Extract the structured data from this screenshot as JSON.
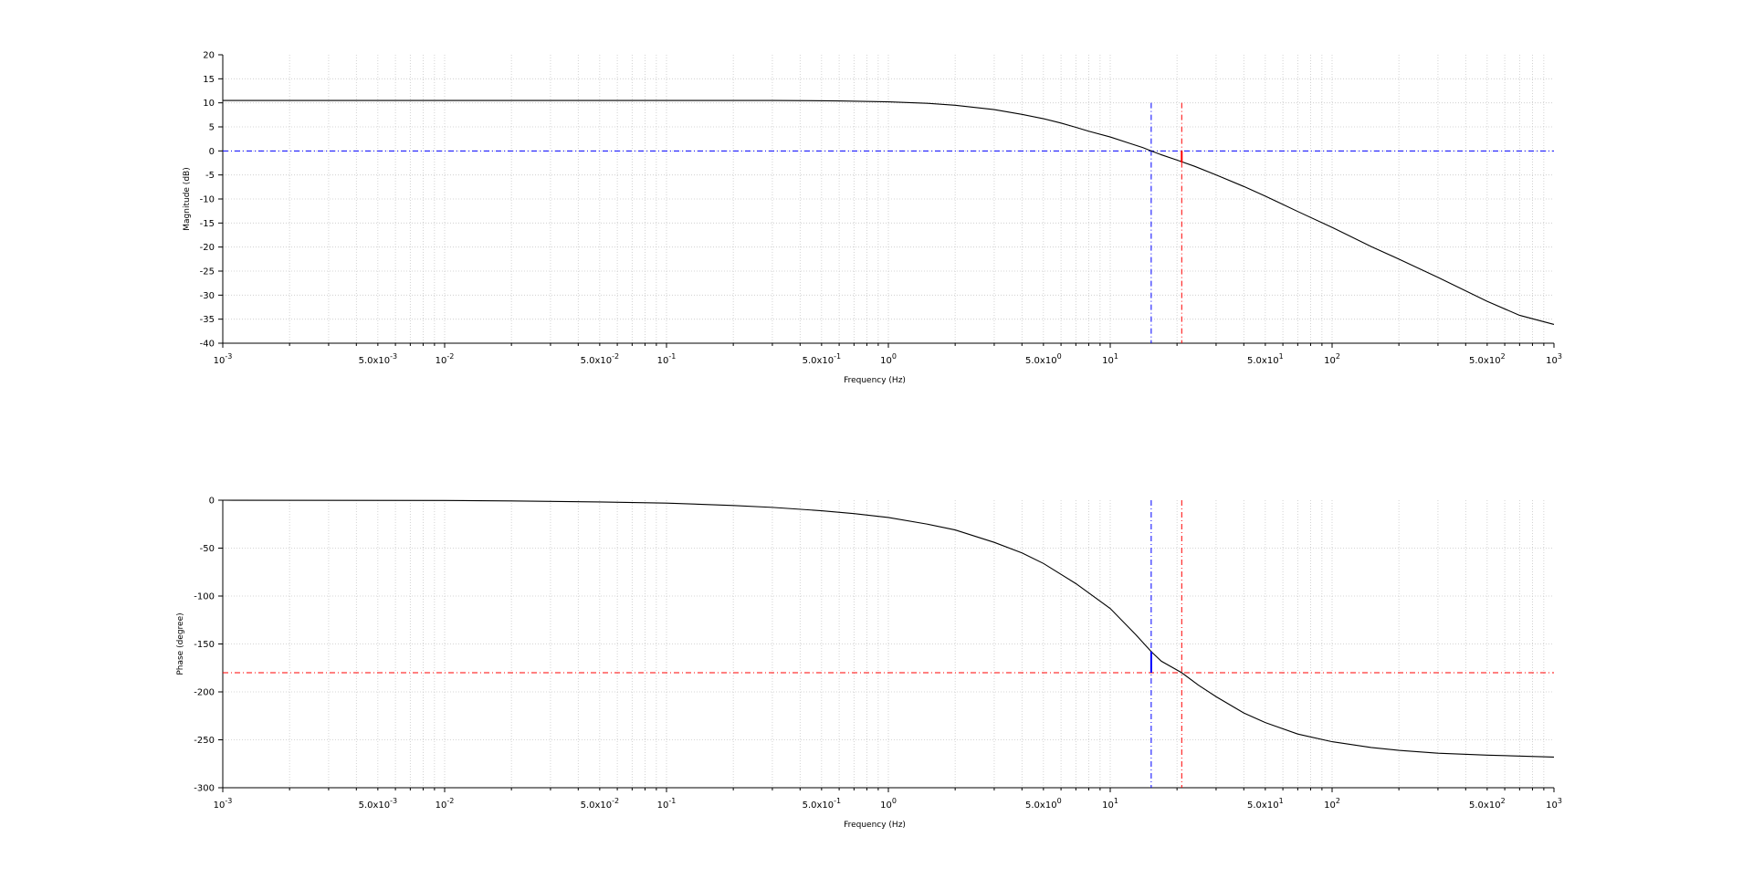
{
  "chart_data": [
    {
      "type": "line",
      "id": "magnitude",
      "title": "",
      "xlabel": "Frequency (Hz)",
      "ylabel": "Magnitude (dB)",
      "xscale": "log",
      "xlim": [
        0.001,
        1000
      ],
      "ylim": [
        -40,
        20
      ],
      "yticks": [
        20,
        15,
        10,
        5,
        0,
        -5,
        -10,
        -15,
        -20,
        -25,
        -30,
        -35,
        -40
      ],
      "xticks": [
        {
          "v": 0.001,
          "base": "10",
          "exp": "-3"
        },
        {
          "v": 0.005,
          "base": "5.0x10",
          "exp": "-3"
        },
        {
          "v": 0.01,
          "base": "10",
          "exp": "-2"
        },
        {
          "v": 0.05,
          "base": "5.0x10",
          "exp": "-2"
        },
        {
          "v": 0.1,
          "base": "10",
          "exp": "-1"
        },
        {
          "v": 0.5,
          "base": "5.0x10",
          "exp": "-1"
        },
        {
          "v": 1,
          "base": "10",
          "exp": "0"
        },
        {
          "v": 5,
          "base": "5.0x10",
          "exp": "0"
        },
        {
          "v": 10,
          "base": "10",
          "exp": "1"
        },
        {
          "v": 50,
          "base": "5.0x10",
          "exp": "1"
        },
        {
          "v": 100,
          "base": "10",
          "exp": "2"
        },
        {
          "v": 500,
          "base": "5.0x10",
          "exp": "2"
        },
        {
          "v": 1000,
          "base": "10",
          "exp": "3"
        }
      ],
      "grid": true,
      "series": [
        {
          "color": "#000000",
          "points": [
            [
              0.001,
              10.5
            ],
            [
              0.01,
              10.5
            ],
            [
              0.1,
              10.5
            ],
            [
              0.3,
              10.5
            ],
            [
              0.6,
              10.4
            ],
            [
              1,
              10.2
            ],
            [
              1.5,
              9.9
            ],
            [
              2,
              9.5
            ],
            [
              3,
              8.6
            ],
            [
              4,
              7.6
            ],
            [
              5,
              6.7
            ],
            [
              6,
              5.8
            ],
            [
              7,
              4.9
            ],
            [
              8,
              4.1
            ],
            [
              10,
              2.9
            ],
            [
              12,
              1.7
            ],
            [
              14,
              0.7
            ],
            [
              15.3,
              0
            ],
            [
              17,
              -0.8
            ],
            [
              20,
              -1.9
            ],
            [
              24,
              -3.2
            ],
            [
              30,
              -5.0
            ],
            [
              40,
              -7.4
            ],
            [
              50,
              -9.4
            ],
            [
              70,
              -12.6
            ],
            [
              100,
              -15.9
            ],
            [
              150,
              -19.9
            ],
            [
              200,
              -22.5
            ],
            [
              300,
              -26.3
            ],
            [
              500,
              -31.3
            ],
            [
              700,
              -34.2
            ],
            [
              1000,
              -36.1
            ]
          ]
        }
      ],
      "reference_lines": [
        {
          "orientation": "horizontal",
          "value": 0,
          "color": "#0000ff",
          "style": "dash-dot"
        },
        {
          "orientation": "vertical",
          "value": 15.3,
          "color": "#0000ff",
          "style": "dash-dot",
          "range": [
            -40,
            10
          ]
        },
        {
          "orientation": "vertical",
          "value": 21,
          "color": "#ff0000",
          "style": "dash-dot",
          "range": [
            -40,
            10
          ]
        }
      ],
      "markers": [
        {
          "x": 21,
          "from": 0,
          "to": -2.4,
          "color": "#ff0000"
        }
      ]
    },
    {
      "type": "line",
      "id": "phase",
      "title": "",
      "xlabel": "Frequency (Hz)",
      "ylabel": "Phase (degree)",
      "xscale": "log",
      "xlim": [
        0.001,
        1000
      ],
      "ylim": [
        -300,
        0
      ],
      "yticks": [
        0,
        -50,
        -100,
        -150,
        -200,
        -250,
        -300
      ],
      "xticks": [
        {
          "v": 0.001,
          "base": "10",
          "exp": "-3"
        },
        {
          "v": 0.005,
          "base": "5.0x10",
          "exp": "-3"
        },
        {
          "v": 0.01,
          "base": "10",
          "exp": "-2"
        },
        {
          "v": 0.05,
          "base": "5.0x10",
          "exp": "-2"
        },
        {
          "v": 0.1,
          "base": "10",
          "exp": "-1"
        },
        {
          "v": 0.5,
          "base": "5.0x10",
          "exp": "-1"
        },
        {
          "v": 1,
          "base": "10",
          "exp": "0"
        },
        {
          "v": 5,
          "base": "5.0x10",
          "exp": "0"
        },
        {
          "v": 10,
          "base": "10",
          "exp": "1"
        },
        {
          "v": 50,
          "base": "5.0x10",
          "exp": "1"
        },
        {
          "v": 100,
          "base": "10",
          "exp": "2"
        },
        {
          "v": 500,
          "base": "5.0x10",
          "exp": "2"
        },
        {
          "v": 1000,
          "base": "10",
          "exp": "3"
        }
      ],
      "grid": true,
      "series": [
        {
          "color": "#000000",
          "points": [
            [
              0.001,
              0
            ],
            [
              0.01,
              -0.3
            ],
            [
              0.02,
              -0.8
            ],
            [
              0.05,
              -1.8
            ],
            [
              0.1,
              -3.0
            ],
            [
              0.2,
              -5.5
            ],
            [
              0.3,
              -7.5
            ],
            [
              0.5,
              -11
            ],
            [
              0.7,
              -14
            ],
            [
              1,
              -18
            ],
            [
              1.5,
              -25
            ],
            [
              2,
              -31
            ],
            [
              3,
              -44
            ],
            [
              4,
              -55
            ],
            [
              5,
              -66
            ],
            [
              7,
              -87
            ],
            [
              10,
              -113
            ],
            [
              13,
              -140
            ],
            [
              15.3,
              -158
            ],
            [
              17,
              -168
            ],
            [
              21,
              -180
            ],
            [
              25,
              -193
            ],
            [
              30,
              -205
            ],
            [
              40,
              -222
            ],
            [
              50,
              -232
            ],
            [
              70,
              -244
            ],
            [
              100,
              -252
            ],
            [
              150,
              -258
            ],
            [
              200,
              -261
            ],
            [
              300,
              -264
            ],
            [
              500,
              -266
            ],
            [
              1000,
              -268
            ]
          ]
        }
      ],
      "reference_lines": [
        {
          "orientation": "horizontal",
          "value": -180,
          "color": "#ff0000",
          "style": "dash-dot"
        },
        {
          "orientation": "vertical",
          "value": 15.3,
          "color": "#0000ff",
          "style": "dash-dot",
          "range": [
            -300,
            0
          ]
        },
        {
          "orientation": "vertical",
          "value": 21,
          "color": "#ff0000",
          "style": "dash-dot",
          "range": [
            -300,
            0
          ]
        }
      ],
      "markers": [
        {
          "x": 15.3,
          "from": -158,
          "to": -180,
          "color": "#0000ff"
        }
      ]
    }
  ]
}
